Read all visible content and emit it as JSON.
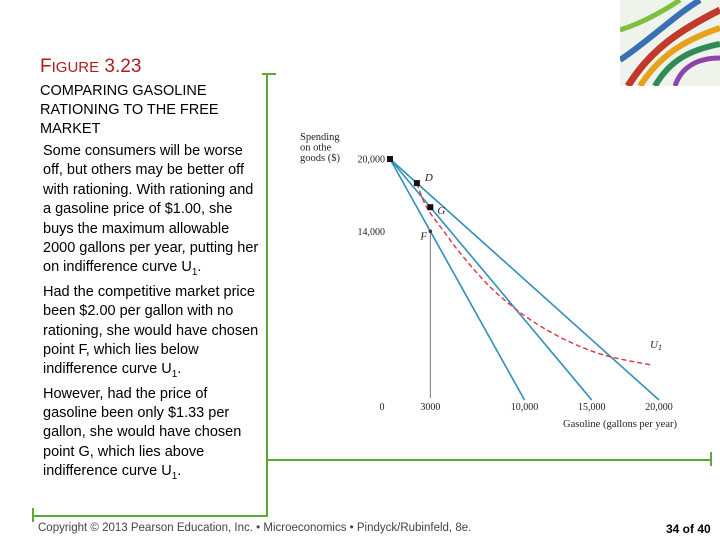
{
  "figure": {
    "label_first": "F",
    "label_rest": "IGURE",
    "label_num": " 3.23",
    "subtitle": "Comparing Gasoline Rationing to the Free Market",
    "body": [
      "Some consumers will be worse off, but others may be better off with rationing. With rationing and a gasoline price of $1.00, she buys the maximum allowable 2000 gallons per year, putting her on indifference curve U",
      "1",
      ".",
      "Had the competitive market price been $2.00 per gallon with no rationing, she would have chosen point F, which lies below indifference curve U",
      "1",
      ".",
      "However, had the price of gasoline been only $1.33 per gallon, she would have chosen point G, which lies above indifference curve U",
      "1",
      "."
    ]
  },
  "footer": {
    "copyright": "Copyright © 2013 Pearson Education, Inc. • Microeconomics • Pindyck/Rubinfeld, 8e.",
    "page": "34 of 40"
  },
  "colors": {
    "title": "#b01c1c",
    "accent_line": "#5ea83a",
    "budget_lines": "#2f8fb8",
    "indifference": "#d9363e"
  },
  "chart_data": {
    "type": "line",
    "ylabel_lines": [
      "Spending",
      "on othe",
      "goods ($)"
    ],
    "xlabel": "Gasoline (gallons per year)",
    "x_ticks": [
      "0",
      "3000",
      "10,000",
      "15,000",
      "20,000"
    ],
    "x_tick_values": [
      0,
      3000,
      10000,
      15000,
      20000
    ],
    "y_ticks": [
      "20,000",
      "14,000"
    ],
    "y_tick_values": [
      20000,
      14000
    ],
    "xlim": [
      0,
      20000
    ],
    "ylim": [
      0,
      20000
    ],
    "series": [
      {
        "kind": "budget",
        "points": [
          [
            0,
            20000
          ],
          [
            10000,
            0
          ]
        ]
      },
      {
        "kind": "budget",
        "points": [
          [
            0,
            20000
          ],
          [
            15000,
            0
          ]
        ]
      },
      {
        "kind": "budget",
        "points": [
          [
            0,
            20000
          ],
          [
            20000,
            0
          ]
        ]
      },
      {
        "kind": "indifference",
        "name": "U1",
        "style": "dashed",
        "points": [
          [
            2000,
            18000
          ],
          [
            2500,
            16500
          ],
          [
            3000,
            15500
          ],
          [
            4000,
            14000
          ],
          [
            5000,
            12500
          ],
          [
            6500,
            10500
          ],
          [
            8000,
            8800
          ],
          [
            10000,
            7000
          ],
          [
            12000,
            5600
          ],
          [
            14000,
            4500
          ],
          [
            16000,
            3700
          ],
          [
            18000,
            3200
          ],
          [
            19500,
            2900
          ]
        ]
      }
    ],
    "points": [
      {
        "label": "D",
        "x": 2000,
        "y": 18000
      },
      {
        "label": "G",
        "x": 3000,
        "y": 16000
      },
      {
        "label": "F",
        "x": 3000,
        "y": 14000
      }
    ],
    "curve_label": {
      "text": "U",
      "sub": "1"
    }
  }
}
